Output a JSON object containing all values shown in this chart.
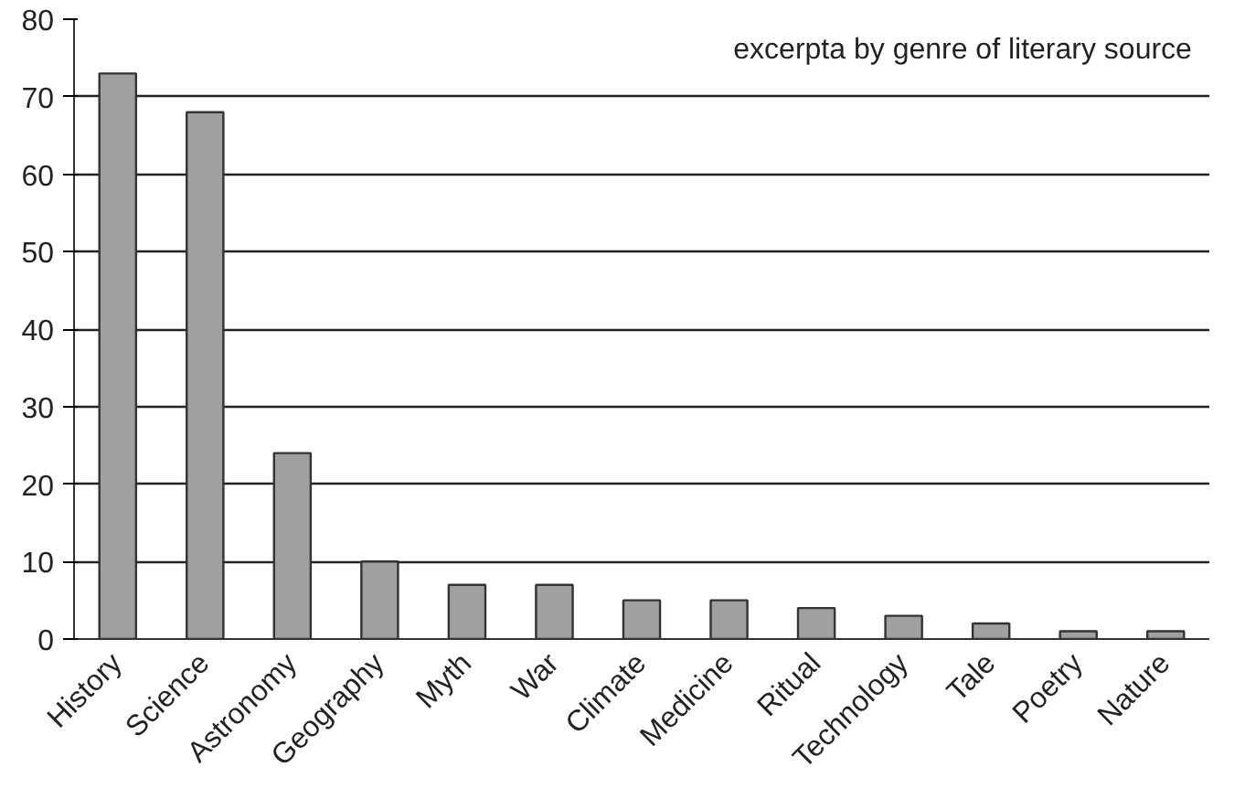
{
  "chart_data": {
    "type": "bar",
    "title": "excerpta by genre of literary source",
    "categories": [
      "History",
      "Science",
      "Astronomy",
      "Geography",
      "Myth",
      "War",
      "Climate",
      "Medicine",
      "Ritual",
      "Technology",
      "Tale",
      "Poetry",
      "Nature"
    ],
    "values": [
      73,
      68,
      24,
      10,
      7,
      7,
      5,
      5,
      4,
      3,
      2,
      1,
      1
    ],
    "color": "#a0a0a0",
    "ylim": [
      0,
      80
    ],
    "yticks": [
      0,
      10,
      20,
      30,
      40,
      50,
      60,
      70,
      80
    ],
    "grid": "y"
  }
}
